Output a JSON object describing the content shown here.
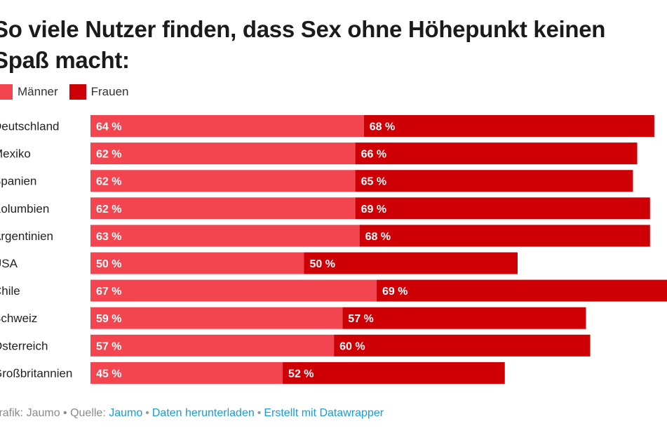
{
  "title": "So viele Nutzer finden, dass Sex ohne Höhepunkt keinen Spaß macht:",
  "legend": {
    "maenner": "Männer",
    "frauen": "Frauen"
  },
  "colors": {
    "maenner": "#f3454f",
    "frauen": "#cf0005"
  },
  "chart_data": {
    "type": "bar",
    "orientation": "horizontal",
    "stacked": true,
    "title": "So viele Nutzer finden, dass Sex ohne Höhepunkt keinen Spaß macht:",
    "legend_position": "top-left",
    "categories": [
      "Deutschland",
      "Mexiko",
      "Spanien",
      "Kolumbien",
      "Argentinien",
      "USA",
      "Chile",
      "Schweiz",
      "Österreich",
      "Großbritannien"
    ],
    "series": [
      {
        "name": "Männer",
        "values": [
          64,
          62,
          62,
          62,
          63,
          50,
          67,
          59,
          57,
          45
        ],
        "labels": [
          "64 %",
          "62 %",
          "62 %",
          "62 %",
          "63 %",
          "50 %",
          "67 %",
          "59 %",
          "57 %",
          "45 %"
        ]
      },
      {
        "name": "Frauen",
        "values": [
          68,
          66,
          65,
          69,
          68,
          50,
          69,
          57,
          60,
          52
        ],
        "labels": [
          "68 %",
          "66 %",
          "65 %",
          "69 %",
          "68 %",
          "50 %",
          "69 %",
          "57 %",
          "60 %",
          "52 %"
        ]
      }
    ],
    "unit": "%"
  },
  "footer": {
    "prefix": "Grafik: Jaumo • Quelle: ",
    "source_link": "Jaumo",
    "download_link": "Daten herunterladen",
    "made_with_link": "Erstellt mit Datawrapper"
  }
}
